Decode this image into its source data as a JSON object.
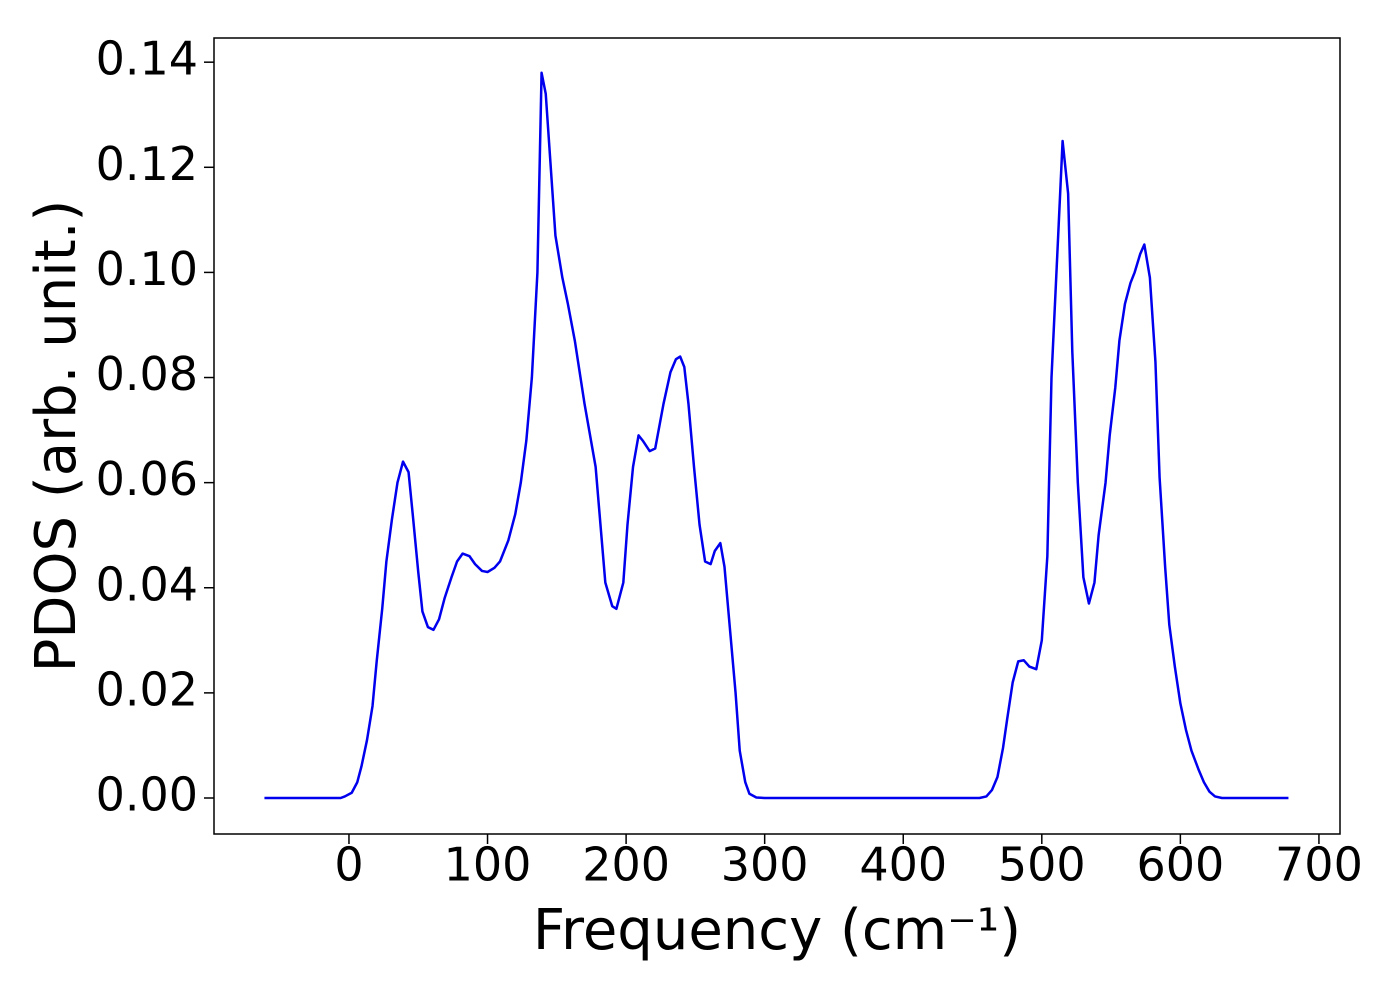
{
  "chart_data": {
    "type": "line",
    "x_label": "Frequency (cm⁻¹)",
    "y_label": "PDOS (arb. unit.)",
    "xlim": [
      -97.4,
      715.2
    ],
    "ylim": [
      -0.00685,
      0.1446
    ],
    "xticks": [
      0,
      100,
      200,
      300,
      400,
      500,
      600,
      700
    ],
    "yticks": [
      {
        "value": 0,
        "label": "0.00"
      },
      {
        "value": 0.02,
        "label": "0.02"
      },
      {
        "value": 0.04,
        "label": "0.04"
      },
      {
        "value": 0.06,
        "label": "0.06"
      },
      {
        "value": 0.08,
        "label": "0.08"
      },
      {
        "value": 0.1,
        "label": "0.10"
      },
      {
        "value": 0.12,
        "label": "0.12"
      },
      {
        "value": 0.14,
        "label": "0.14"
      }
    ],
    "grid": false,
    "series": [
      {
        "color": "#0000ee",
        "x": [
          -61,
          -6,
          -3,
          2,
          6,
          9,
          13,
          17,
          20,
          24,
          27,
          31,
          35,
          39,
          43,
          46,
          50,
          53,
          57,
          61,
          65,
          69,
          74,
          78,
          82,
          87,
          91,
          96,
          100,
          105,
          109,
          115,
          120,
          124,
          128,
          132,
          136,
          139,
          142,
          149,
          154,
          158,
          163,
          170,
          178,
          185,
          190,
          193,
          198,
          201,
          205,
          209,
          212,
          217,
          221,
          227,
          232,
          236,
          239,
          242,
          245,
          249,
          253,
          257,
          261,
          264,
          268,
          271,
          275,
          279,
          282,
          286,
          289,
          294,
          300,
          455,
          460,
          464,
          468,
          472,
          475,
          479,
          483,
          487,
          491,
          496,
          500,
          504,
          507,
          512,
          515,
          519,
          522,
          526,
          530,
          534,
          538,
          541,
          546,
          549,
          553,
          556,
          560,
          564,
          567,
          571,
          574,
          578,
          582,
          585,
          589,
          592,
          596,
          600,
          604,
          608,
          613,
          617,
          621,
          625,
          630,
          678
        ],
        "values": [
          0,
          0,
          0.0003,
          0.001,
          0.003,
          0.006,
          0.011,
          0.0175,
          0.026,
          0.036,
          0.045,
          0.053,
          0.06,
          0.064,
          0.062,
          0.054,
          0.043,
          0.0355,
          0.0325,
          0.032,
          0.034,
          0.038,
          0.042,
          0.045,
          0.0465,
          0.046,
          0.0445,
          0.0432,
          0.043,
          0.0438,
          0.045,
          0.049,
          0.054,
          0.06,
          0.068,
          0.08,
          0.1,
          0.138,
          0.134,
          0.107,
          0.099,
          0.094,
          0.087,
          0.075,
          0.063,
          0.041,
          0.0365,
          0.036,
          0.041,
          0.052,
          0.063,
          0.069,
          0.068,
          0.066,
          0.0665,
          0.075,
          0.081,
          0.0835,
          0.084,
          0.082,
          0.075,
          0.063,
          0.052,
          0.045,
          0.0445,
          0.047,
          0.0485,
          0.044,
          0.032,
          0.02,
          0.009,
          0.003,
          0.0008,
          0.0001,
          0,
          0,
          0.0003,
          0.0015,
          0.004,
          0.0095,
          0.015,
          0.022,
          0.026,
          0.0262,
          0.025,
          0.0245,
          0.03,
          0.046,
          0.08,
          0.108,
          0.125,
          0.115,
          0.085,
          0.06,
          0.042,
          0.037,
          0.041,
          0.05,
          0.06,
          0.069,
          0.078,
          0.087,
          0.094,
          0.098,
          0.1,
          0.1035,
          0.1053,
          0.099,
          0.083,
          0.061,
          0.044,
          0.033,
          0.025,
          0.018,
          0.013,
          0.009,
          0.0055,
          0.003,
          0.0012,
          0.0003,
          0,
          0
        ]
      }
    ]
  }
}
